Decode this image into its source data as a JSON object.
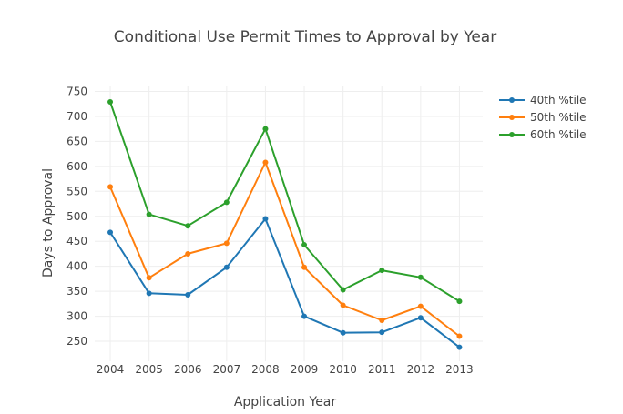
{
  "chart_data": {
    "type": "line",
    "title": "Conditional Use Permit Times to Approval by Year",
    "xlabel": "Application Year",
    "ylabel": "Days to Approval",
    "x": [
      2004,
      2005,
      2006,
      2007,
      2008,
      2009,
      2010,
      2011,
      2012,
      2013
    ],
    "x_tick_labels": [
      "2004",
      "2005",
      "2006",
      "2007",
      "2008",
      "2009",
      "2010",
      "2011",
      "2012",
      "2013"
    ],
    "xlim": [
      2003.6,
      2013.6
    ],
    "ylim": [
      210,
      760
    ],
    "y_ticks": [
      250,
      300,
      350,
      400,
      450,
      500,
      550,
      600,
      650,
      700,
      750
    ],
    "y_tick_labels": [
      "250",
      "300",
      "350",
      "400",
      "450",
      "500",
      "550",
      "600",
      "650",
      "700",
      "750"
    ],
    "grid": true,
    "legend_position": "top-right",
    "series": [
      {
        "name": "40th %tile",
        "color": "#1f77b4",
        "values": [
          468,
          346,
          343,
          398,
          495,
          300,
          267,
          268,
          297,
          238
        ]
      },
      {
        "name": "50th %tile",
        "color": "#ff7f0e",
        "values": [
          559,
          377,
          425,
          446,
          608,
          398,
          322,
          292,
          320,
          260
        ]
      },
      {
        "name": "60th %tile",
        "color": "#2ca02c",
        "values": [
          729,
          504,
          481,
          528,
          675,
          443,
          353,
          392,
          378,
          330
        ]
      }
    ]
  }
}
